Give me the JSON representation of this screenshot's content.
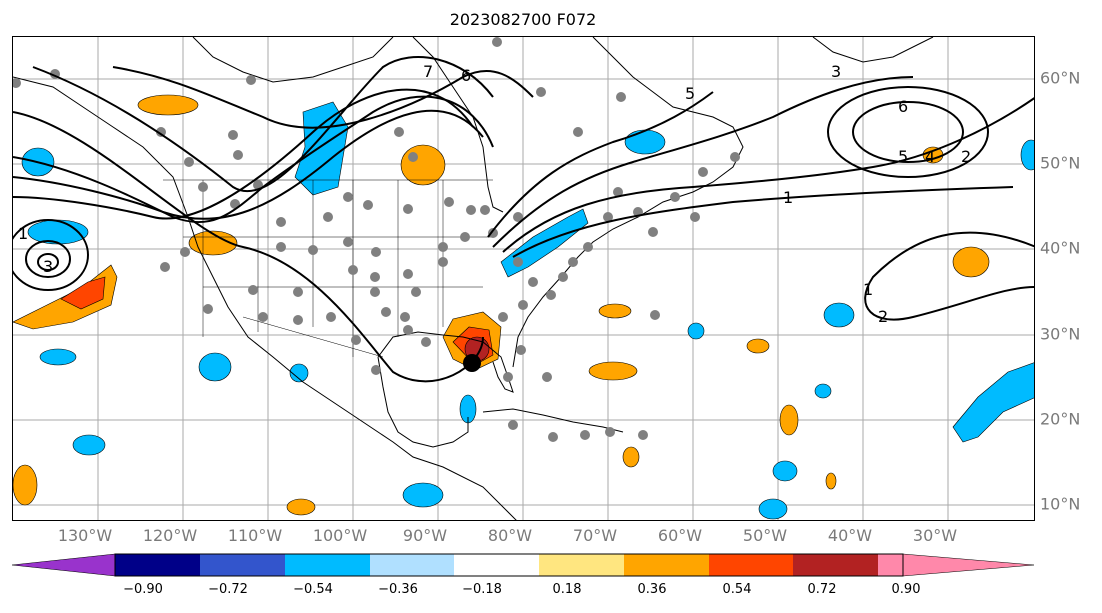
{
  "title": "2023082700 F072",
  "lon_labels": [
    "130°W",
    "120°W",
    "110°W",
    "100°W",
    "90°W",
    "80°W",
    "70°W",
    "60°W",
    "50°W",
    "40°W",
    "30°W"
  ],
  "lat_labels": [
    "60°N",
    "50°N",
    "40°N",
    "30°N",
    "20°N",
    "10°N"
  ],
  "colorbar": {
    "ticks": [
      "−0.90",
      "−0.72",
      "−0.54",
      "−0.36",
      "−0.18",
      "0.18",
      "0.36",
      "0.54",
      "0.72",
      "0.90"
    ],
    "colors": [
      "#9933cc",
      "#000088",
      "#3355cc",
      "#00bbff",
      "#b0e0ff",
      "#ffffff",
      "#ffe680",
      "#ffa500",
      "#ff4500",
      "#b22222",
      "#ff88aa"
    ]
  },
  "contour_labels": [
    "1",
    "2",
    "3",
    "4",
    "5",
    "6",
    "7"
  ],
  "colors": {
    "grid": "#aaaaaa",
    "coast": "#000000",
    "station": "#808080",
    "storm": "#000000"
  }
}
